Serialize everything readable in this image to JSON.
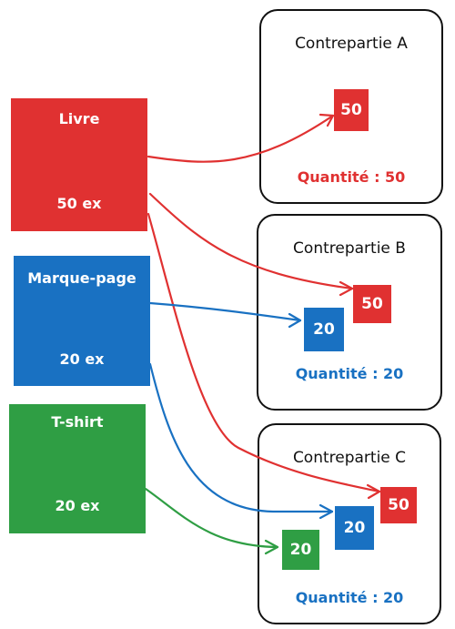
{
  "colors": {
    "red": "#e03131",
    "blue": "#1971c2",
    "green": "#2f9e44",
    "outline": "#111111"
  },
  "products": [
    {
      "name": "Livre",
      "quantity": "50 ex",
      "color": "red"
    },
    {
      "name": "Marque-page",
      "quantity": "20 ex",
      "color": "blue"
    },
    {
      "name": "T-shirt",
      "quantity": "20 ex",
      "color": "green"
    }
  ],
  "counterparts": [
    {
      "title": "Contrepartie A",
      "items": [
        "50"
      ],
      "quantity_label": "Quantité : 50",
      "quantity_color": "red"
    },
    {
      "title": "Contrepartie B",
      "items": [
        "50",
        "20"
      ],
      "quantity_label": "Quantité : 20",
      "quantity_color": "blue"
    },
    {
      "title": "Contrepartie C",
      "items": [
        "50",
        "20",
        "20"
      ],
      "quantity_label": "Quantité : 20",
      "quantity_color": "blue"
    }
  ]
}
